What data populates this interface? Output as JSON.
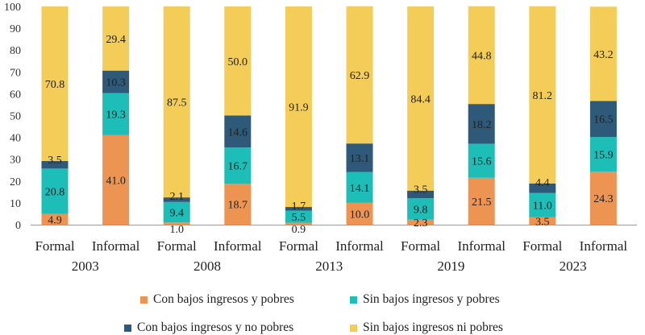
{
  "chart_data": {
    "type": "bar",
    "stacked": true,
    "ylim": [
      0,
      100
    ],
    "yticks": [
      0,
      10,
      20,
      30,
      40,
      50,
      60,
      70,
      80,
      90,
      100
    ],
    "colors": {
      "pobres": "#EE9452",
      "sin_bajos_y_pobres": "#1DBDB8",
      "bajos_no_pobres": "#2E5979",
      "ni_pobres": "#F3CD57"
    },
    "groups": [
      {
        "year": "2003",
        "bars": [
          {
            "category": "Formal",
            "values": [
              4.9,
              20.8,
              3.5,
              70.8
            ],
            "labels": [
              "4.9",
              "20.8",
              "3.5",
              "70.8"
            ]
          },
          {
            "category": "Informal",
            "values": [
              41.0,
              19.3,
              10.3,
              29.4
            ],
            "labels": [
              "41.0",
              "19.3",
              "10.3",
              "29.4"
            ]
          }
        ]
      },
      {
        "year": "2008",
        "bars": [
          {
            "category": "Formal",
            "values": [
              1.0,
              9.4,
              2.1,
              87.5
            ],
            "labels": [
              "1.0",
              "9.4",
              "2.1",
              "87.5"
            ]
          },
          {
            "category": "Informal",
            "values": [
              18.7,
              16.7,
              14.6,
              50.0
            ],
            "labels": [
              "18.7",
              "16.7",
              "14.6",
              "50.0"
            ]
          }
        ]
      },
      {
        "year": "2013",
        "bars": [
          {
            "category": "Formal",
            "values": [
              0.9,
              5.5,
              1.7,
              91.9
            ],
            "labels": [
              "0.9",
              "5.5",
              "1.7",
              "91.9"
            ]
          },
          {
            "category": "Informal",
            "values": [
              10.0,
              14.1,
              13.1,
              62.9
            ],
            "labels": [
              "10.0",
              "14.1",
              "13.1",
              "62.9"
            ]
          }
        ]
      },
      {
        "year": "2019",
        "bars": [
          {
            "category": "Formal",
            "values": [
              2.3,
              9.8,
              3.5,
              84.4
            ],
            "labels": [
              "2.3",
              "9.8",
              "3.5",
              "84.4"
            ]
          },
          {
            "category": "Informal",
            "values": [
              21.5,
              15.6,
              18.2,
              44.8
            ],
            "labels": [
              "21.5",
              "15.6",
              "18.2",
              "44.8"
            ]
          }
        ]
      },
      {
        "year": "2023",
        "bars": [
          {
            "category": "Formal",
            "values": [
              3.5,
              11.0,
              4.4,
              81.2
            ],
            "labels": [
              "3.5",
              "11.0",
              "4.4",
              "81.2"
            ]
          },
          {
            "category": "Informal",
            "values": [
              24.3,
              15.9,
              16.5,
              43.2
            ],
            "labels": [
              "24.3",
              "15.9",
              "16.5",
              "43.2"
            ]
          }
        ]
      }
    ],
    "legend": [
      {
        "key": "pobres",
        "label": "Con bajos ingresos y pobres"
      },
      {
        "key": "sin_bajos_y_pobres",
        "label": "Sin bajos ingresos y pobres"
      },
      {
        "key": "bajos_no_pobres",
        "label": "Con bajos ingresos y no pobres"
      },
      {
        "key": "ni_pobres",
        "label": "Sin bajos ingresos ni pobres"
      }
    ]
  }
}
